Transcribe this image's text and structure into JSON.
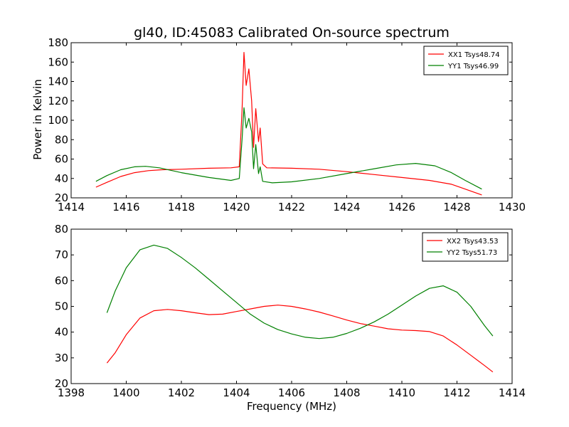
{
  "chart_data": [
    {
      "type": "line",
      "title": "gl40, ID:45083 Calibrated On-source spectrum",
      "xlabel": "",
      "ylabel": "Power in Kelvin",
      "xlim": [
        1414,
        1430
      ],
      "ylim": [
        20,
        180
      ],
      "xticks": [
        "1414",
        "1416",
        "1418",
        "1420",
        "1422",
        "1424",
        "1426",
        "1428",
        "1430"
      ],
      "yticks": [
        "20",
        "40",
        "60",
        "80",
        "100",
        "120",
        "140",
        "160",
        "180"
      ],
      "legend_position": "top-right",
      "series": [
        {
          "name": "XX1 Tsys48.74",
          "color": "#ff0000",
          "x": [
            1414.9,
            1415.3,
            1415.8,
            1416.3,
            1416.8,
            1417.3,
            1418.0,
            1419.0,
            1419.8,
            1420.1,
            1420.2,
            1420.27,
            1420.35,
            1420.45,
            1420.55,
            1420.62,
            1420.7,
            1420.8,
            1420.86,
            1420.95,
            1421.1,
            1422.0,
            1423.0,
            1424.0,
            1425.0,
            1426.0,
            1427.0,
            1427.8,
            1428.3,
            1428.9
          ],
          "y": [
            31,
            36,
            42,
            46,
            48,
            49,
            49.5,
            50.5,
            51,
            52,
            110,
            170,
            136,
            153,
            120,
            72,
            112,
            78,
            92,
            55,
            51,
            50.5,
            49.5,
            47,
            44,
            41,
            38,
            34,
            29,
            23
          ]
        },
        {
          "name": "YY1 Tsys46.99",
          "color": "#008000",
          "x": [
            1414.9,
            1415.3,
            1415.8,
            1416.3,
            1416.7,
            1417.2,
            1418.0,
            1419.0,
            1419.8,
            1420.1,
            1420.2,
            1420.27,
            1420.35,
            1420.45,
            1420.55,
            1420.62,
            1420.7,
            1420.8,
            1420.86,
            1420.95,
            1421.3,
            1422.0,
            1423.0,
            1424.0,
            1425.0,
            1425.8,
            1426.5,
            1427.2,
            1427.8,
            1428.3,
            1428.9
          ],
          "y": [
            37,
            43,
            49,
            52,
            52.5,
            51,
            46,
            41,
            38,
            40,
            80,
            113,
            92,
            102,
            88,
            50,
            75,
            45,
            52,
            37,
            35.5,
            36.5,
            40,
            45,
            50,
            54,
            55.5,
            53,
            46,
            38,
            29
          ]
        }
      ]
    },
    {
      "type": "line",
      "title": "",
      "xlabel": "Frequency (MHz)",
      "ylabel": "",
      "xlim": [
        1398,
        1414
      ],
      "ylim": [
        20,
        80
      ],
      "xticks": [
        "1398",
        "1400",
        "1402",
        "1404",
        "1406",
        "1408",
        "1410",
        "1412",
        "1414"
      ],
      "yticks": [
        "20",
        "30",
        "40",
        "50",
        "60",
        "70",
        "80"
      ],
      "legend_position": "top-right",
      "series": [
        {
          "name": "XX2 Tsys43.53",
          "color": "#ff0000",
          "x": [
            1399.3,
            1399.6,
            1400.0,
            1400.5,
            1401.0,
            1401.5,
            1402.0,
            1402.5,
            1403.0,
            1403.5,
            1404.0,
            1404.5,
            1405.0,
            1405.5,
            1406.0,
            1406.5,
            1407.0,
            1407.5,
            1408.0,
            1408.5,
            1409.0,
            1409.5,
            1410.0,
            1410.5,
            1411.0,
            1411.5,
            1412.0,
            1412.5,
            1413.0,
            1413.3
          ],
          "y": [
            28,
            32,
            39,
            45.5,
            48.3,
            48.8,
            48.3,
            47.5,
            46.8,
            47,
            48,
            49,
            50,
            50.5,
            50,
            49,
            47.8,
            46.3,
            44.7,
            43.3,
            42.3,
            41.3,
            40.8,
            40.6,
            40.2,
            38.5,
            35,
            31,
            27,
            24.5
          ]
        },
        {
          "name": "YY2 Tsys51.73",
          "color": "#008000",
          "x": [
            1399.3,
            1399.6,
            1400.0,
            1400.5,
            1401.0,
            1401.5,
            1402.0,
            1402.5,
            1403.0,
            1403.5,
            1404.0,
            1404.5,
            1405.0,
            1405.5,
            1406.0,
            1406.5,
            1407.0,
            1407.5,
            1408.0,
            1408.5,
            1409.0,
            1409.5,
            1410.0,
            1410.5,
            1411.0,
            1411.5,
            1412.0,
            1412.5,
            1413.0,
            1413.3
          ],
          "y": [
            47.5,
            56,
            65,
            72,
            73.8,
            72.5,
            69,
            65,
            60.5,
            56,
            51.5,
            47,
            43.5,
            41,
            39.3,
            38,
            37.5,
            38,
            39.5,
            41.5,
            44,
            47,
            50.5,
            54,
            57,
            58,
            55.5,
            50,
            42.5,
            38.5
          ]
        }
      ]
    }
  ]
}
